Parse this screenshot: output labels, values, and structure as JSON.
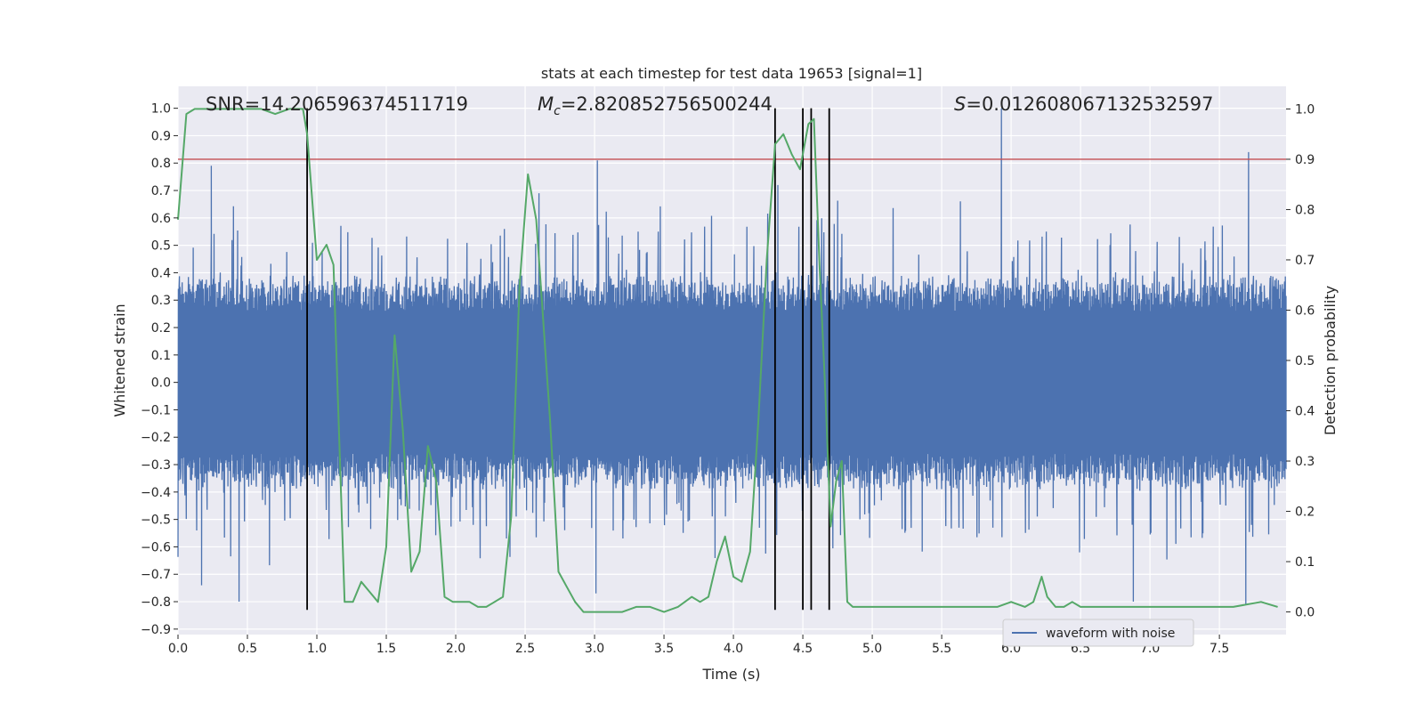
{
  "chart_data": {
    "type": "line",
    "title": "stats at each timestep for test data 19653 [signal=1]",
    "xlabel": "Time (s)",
    "ylabel": "Whitened strain",
    "y2label": "Detection probability",
    "xlim": [
      0.0,
      7.98
    ],
    "ylim": [
      -0.92,
      1.08
    ],
    "y2lim": [
      -0.045,
      1.045
    ],
    "xticks": [
      0.0,
      0.5,
      1.0,
      1.5,
      2.0,
      2.5,
      3.0,
      3.5,
      4.0,
      4.5,
      5.0,
      5.5,
      6.0,
      6.5,
      7.0,
      7.5
    ],
    "xtick_labels": [
      "0.0",
      "0.5",
      "1.0",
      "1.5",
      "2.0",
      "2.5",
      "3.0",
      "3.5",
      "4.0",
      "4.5",
      "5.0",
      "5.5",
      "6.0",
      "6.5",
      "7.0",
      "7.5"
    ],
    "yticks": [
      1.0,
      0.9,
      0.8,
      0.7,
      0.6,
      0.5,
      0.4,
      0.3,
      0.2,
      0.1,
      0.0,
      -0.1,
      -0.2,
      -0.3,
      -0.4,
      -0.5,
      -0.6,
      -0.7,
      -0.8,
      -0.9
    ],
    "ytick_labels": [
      "1.0",
      "0.9",
      "0.8",
      "0.7",
      "0.6",
      "0.5",
      "0.4",
      "0.3",
      "0.2",
      "0.1",
      "0.0",
      "−0.1",
      "−0.2",
      "−0.3",
      "−0.4",
      "−0.5",
      "−0.6",
      "−0.7",
      "−0.8",
      "−0.9"
    ],
    "y2ticks": [
      1.0,
      0.9,
      0.8,
      0.7,
      0.6,
      0.5,
      0.4,
      0.3,
      0.2,
      0.1,
      0.0
    ],
    "y2tick_labels": [
      "1.0",
      "0.9",
      "0.8",
      "0.7",
      "0.6",
      "0.5",
      "0.4",
      "0.3",
      "0.2",
      "0.1",
      "0.0"
    ],
    "grid": true,
    "legend_placement": "bottom-right",
    "annotations": {
      "snr": "SNR=14.206596374511719",
      "mc_symbol": "M",
      "mc_sub": "c",
      "mc_value": "=2.820852756500244",
      "s_symbol": "S",
      "s_value": "=0.012608067132532597"
    },
    "threshold": {
      "value": 0.9,
      "axis": "y2",
      "color": "#c44e52"
    },
    "vertical_lines": {
      "x": [
        0.93,
        4.3,
        4.5,
        4.56,
        4.69
      ],
      "ymin": -0.83,
      "ymax": 1.0,
      "color": "#000000"
    },
    "waveform": {
      "name": "waveform with noise",
      "color": "#4c72b0",
      "duration": 7.98,
      "samples": 1600,
      "min_peak": -0.81,
      "max_peak": 1.0,
      "peaks": [
        {
          "x": 0.24,
          "y": 0.79
        },
        {
          "x": 3.02,
          "y": 0.81
        },
        {
          "x": 5.93,
          "y": 1.0
        },
        {
          "x": 7.71,
          "y": 0.84
        },
        {
          "x": 0.44,
          "y": -0.8
        },
        {
          "x": 7.69,
          "y": -0.81
        },
        {
          "x": 6.88,
          "y": -0.8
        },
        {
          "x": 3.01,
          "y": -0.77
        },
        {
          "x": 0.17,
          "y": -0.74
        },
        {
          "x": 4.32,
          "y": 0.72
        },
        {
          "x": 2.6,
          "y": 0.69
        }
      ]
    },
    "probability": {
      "color": "#55a868",
      "x": [
        0.0,
        0.06,
        0.12,
        0.2,
        0.3,
        0.4,
        0.5,
        0.6,
        0.7,
        0.8,
        0.9,
        0.93,
        1.0,
        1.07,
        1.12,
        1.2,
        1.26,
        1.32,
        1.38,
        1.44,
        1.5,
        1.56,
        1.62,
        1.68,
        1.74,
        1.8,
        1.86,
        1.92,
        1.98,
        2.04,
        2.1,
        2.16,
        2.22,
        2.28,
        2.34,
        2.4,
        2.46,
        2.52,
        2.58,
        2.62,
        2.68,
        2.74,
        2.8,
        2.86,
        2.92,
        2.98,
        3.04,
        3.1,
        3.2,
        3.3,
        3.4,
        3.5,
        3.6,
        3.7,
        3.76,
        3.82,
        3.88,
        3.94,
        4.0,
        4.06,
        4.12,
        4.18,
        4.24,
        4.3,
        4.36,
        4.42,
        4.48,
        4.54,
        4.58,
        4.62,
        4.66,
        4.7,
        4.74,
        4.78,
        4.82,
        4.86,
        4.9,
        4.94,
        4.98,
        5.04,
        5.2,
        5.4,
        5.6,
        5.8,
        5.9,
        6.0,
        6.1,
        6.16,
        6.22,
        6.26,
        6.32,
        6.38,
        6.44,
        6.5,
        6.6,
        6.8,
        7.0,
        7.2,
        7.4,
        7.6,
        7.8,
        7.92
      ],
      "y": [
        0.78,
        0.99,
        1.0,
        1.0,
        1.0,
        1.0,
        1.0,
        1.0,
        0.99,
        1.0,
        1.0,
        0.95,
        0.7,
        0.73,
        0.69,
        0.02,
        0.02,
        0.06,
        0.04,
        0.02,
        0.13,
        0.55,
        0.36,
        0.08,
        0.12,
        0.33,
        0.26,
        0.03,
        0.02,
        0.02,
        0.02,
        0.01,
        0.01,
        0.02,
        0.03,
        0.19,
        0.65,
        0.87,
        0.78,
        0.62,
        0.38,
        0.08,
        0.05,
        0.02,
        0.0,
        0.0,
        0.0,
        0.0,
        0.0,
        0.01,
        0.01,
        0.0,
        0.01,
        0.03,
        0.02,
        0.03,
        0.1,
        0.15,
        0.07,
        0.06,
        0.12,
        0.38,
        0.7,
        0.93,
        0.95,
        0.91,
        0.88,
        0.97,
        0.98,
        0.69,
        0.45,
        0.17,
        0.26,
        0.3,
        0.02,
        0.01,
        0.01,
        0.01,
        0.01,
        0.01,
        0.01,
        0.01,
        0.01,
        0.01,
        0.01,
        0.02,
        0.01,
        0.02,
        0.07,
        0.03,
        0.01,
        0.01,
        0.02,
        0.01,
        0.01,
        0.01,
        0.01,
        0.01,
        0.01,
        0.01,
        0.02,
        0.01
      ]
    }
  }
}
